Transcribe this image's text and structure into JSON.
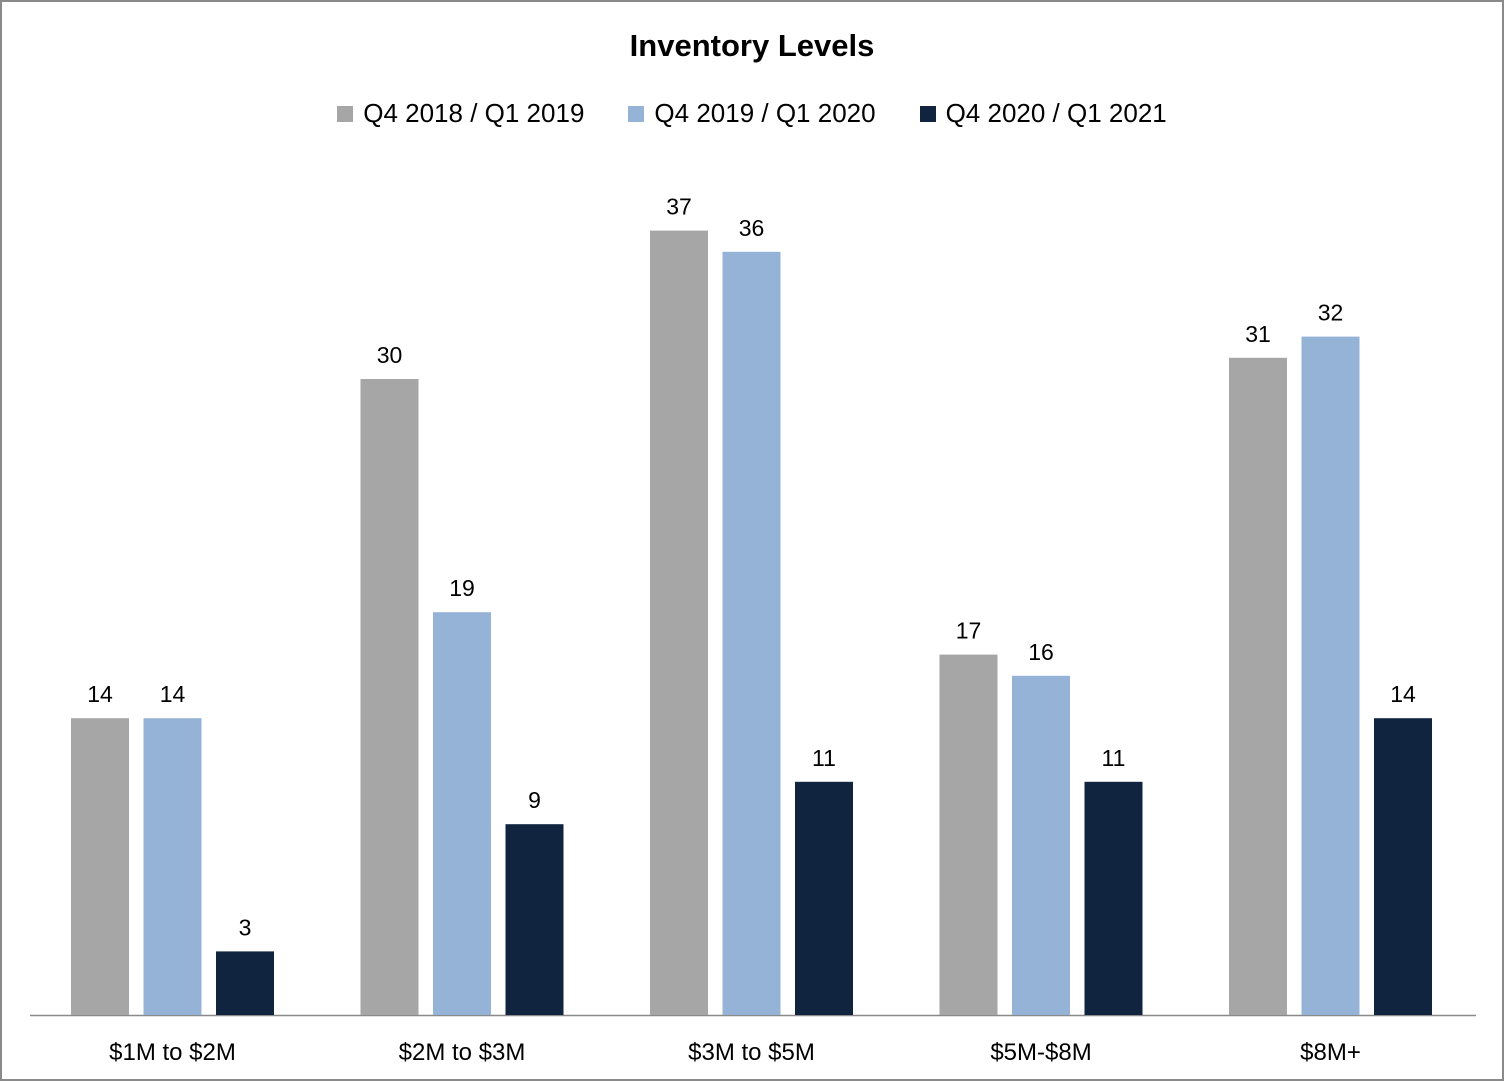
{
  "chart_data": {
    "type": "bar",
    "title": "Inventory Levels",
    "xlabel": "",
    "ylabel": "",
    "categories": [
      "$1M to $2M",
      "$2M to $3M",
      "$3M to $5M",
      "$5M-$8M",
      "$8M+"
    ],
    "series": [
      {
        "name": "Q4 2018 / Q1 2019",
        "color": "#a6a6a6",
        "values": [
          14,
          30,
          37,
          17,
          31
        ]
      },
      {
        "name": "Q4 2019 / Q1 2020",
        "color": "#95b3d7",
        "values": [
          14,
          19,
          36,
          16,
          32
        ]
      },
      {
        "name": "Q4 2020 / Q1 2021",
        "color": "#10243f",
        "values": [
          3,
          9,
          11,
          11,
          14
        ]
      }
    ],
    "ylim": [
      0,
      40
    ],
    "grid": false,
    "legend_position": "top",
    "data_labels": true
  }
}
